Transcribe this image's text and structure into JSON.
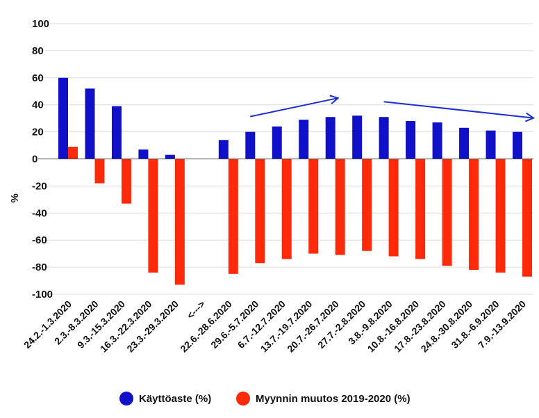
{
  "chart_data": {
    "type": "bar",
    "ylabel": "%",
    "ylim": [
      -100,
      100
    ],
    "yticks": [
      100,
      80,
      60,
      40,
      20,
      0,
      -20,
      -40,
      -60,
      -80,
      -100
    ],
    "grid": true,
    "legend_position": "bottom",
    "categories": [
      "24.2.-1.3.2020",
      "2.3.-8.3.2020",
      "9.3.-15.3.2020",
      "16.3.-22.3.2020",
      "23.3.-29.3.2020",
      "<--->",
      "22.6.-28.6.2020",
      "29.6.-5.7.2020",
      "6.7.-12.7.2020",
      "13.7.-19.7.2020",
      "20.7.-26.7.2020",
      "27.7.-2.8.2020",
      "3.8.-9.8.2020",
      "10.8.-16.8.2020",
      "17.8.-23.8.2020",
      "24.8.-30.8.2020",
      "31.8.-6.9.2020",
      "7.9.-13.9.2020"
    ],
    "series": [
      {
        "name": "Käyttöaste (%)",
        "color": "#1010c8",
        "values": [
          60,
          52,
          39,
          7,
          3,
          null,
          14,
          20,
          24,
          29,
          31,
          32,
          31,
          28,
          27,
          23,
          21,
          20
        ]
      },
      {
        "name": "Myynnin muutos 2019-2020 (%)",
        "color": "#ff2a0a",
        "values": [
          9,
          -18,
          -33,
          -84,
          -93,
          null,
          -85,
          -77,
          -74,
          -70,
          -71,
          -68,
          -72,
          -74,
          -79,
          -82,
          -84,
          -87
        ]
      }
    ],
    "annotations": [
      {
        "type": "trend-arrow",
        "from": "29.6.-5.7.2020",
        "to": "20.7.-26.7.2020",
        "color": "#1a2ed6"
      },
      {
        "type": "trend-arrow",
        "from": "3.8.-9.8.2020",
        "to": "7.9.-13.9.2020",
        "color": "#1a2ed6"
      }
    ]
  }
}
